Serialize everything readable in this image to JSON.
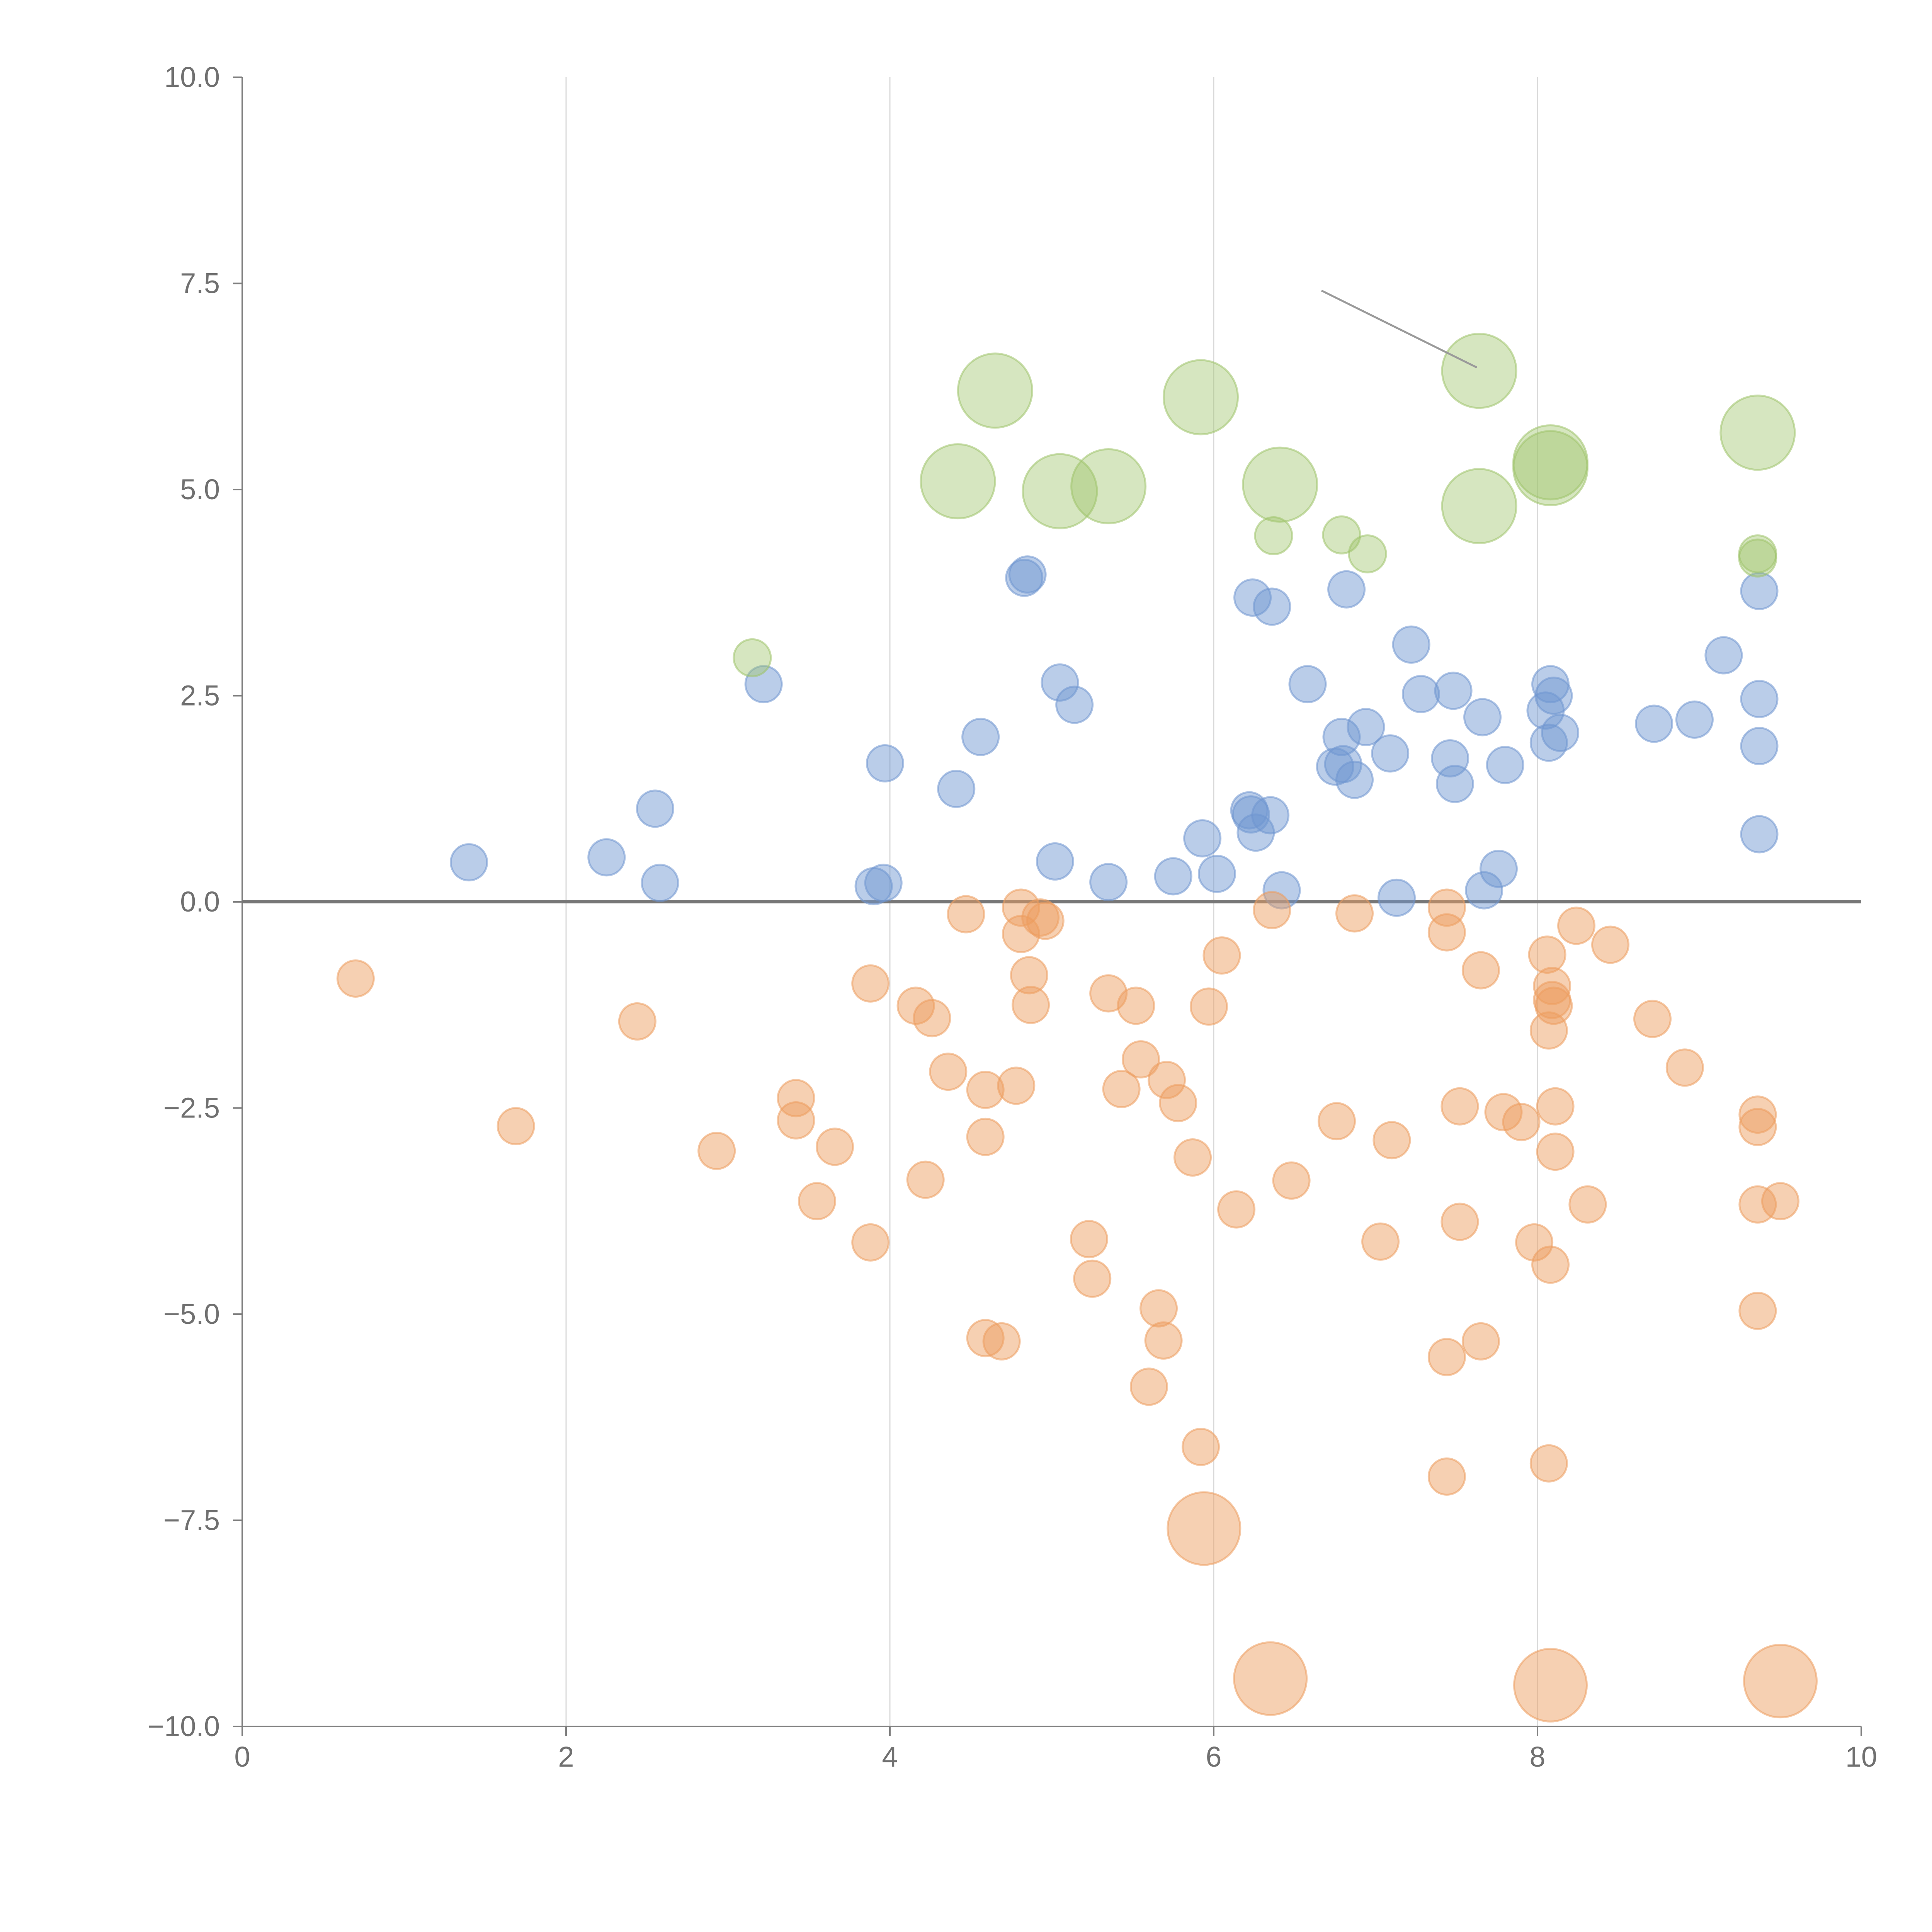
{
  "colors": {
    "positive": "#6f96d0",
    "negative": "#ec9c5f",
    "large": "#9ec36a",
    "axis": "#7f7f7f",
    "grid": "#d9d9d9",
    "tick": "#707070",
    "zero": "#777777"
  },
  "chart_data": {
    "type": "scatter",
    "title": "",
    "xlabel": "",
    "ylabel": "",
    "xlim": [
      0,
      10
    ],
    "ylim": [
      -10,
      10
    ],
    "grid": "vertical",
    "x_ticks": [
      "0",
      "2",
      "4",
      "6",
      "8",
      "10"
    ],
    "y_ticks": [
      "10.0",
      "7.5",
      "5.0",
      "2.5",
      "0.0",
      "−2.5",
      "−5.0",
      "−7.5",
      "−10.0"
    ],
    "series": [
      {
        "values": [
          [
            1.4,
            0.48
          ],
          [
            2.25,
            0.54
          ],
          [
            2.55,
            1.13
          ],
          [
            2.58,
            0.23
          ],
          [
            3.22,
            2.64
          ],
          [
            3.9,
            0.19
          ],
          [
            3.96,
            0.23
          ],
          [
            3.97,
            1.68
          ],
          [
            4.41,
            1.37
          ],
          [
            4.56,
            2.0
          ],
          [
            4.83,
            3.93
          ],
          [
            4.85,
            3.97
          ],
          [
            5.02,
            0.49
          ],
          [
            5.05,
            2.66
          ],
          [
            5.14,
            2.39
          ],
          [
            5.35,
            0.24
          ],
          [
            5.75,
            0.31
          ],
          [
            5.93,
            0.77
          ],
          [
            6.02,
            0.34
          ],
          [
            6.22,
            1.11
          ],
          [
            6.23,
            1.06
          ],
          [
            6.24,
            3.69
          ],
          [
            6.26,
            0.84
          ],
          [
            6.35,
            1.05
          ],
          [
            6.36,
            3.58
          ],
          [
            6.42,
            0.14
          ],
          [
            6.58,
            2.64
          ],
          [
            6.75,
            1.64
          ],
          [
            6.79,
            2.0
          ],
          [
            6.8,
            1.67
          ],
          [
            6.82,
            3.79
          ],
          [
            6.87,
            1.48
          ],
          [
            6.94,
            2.12
          ],
          [
            7.09,
            1.8
          ],
          [
            7.13,
            0.05
          ],
          [
            7.22,
            3.12
          ],
          [
            7.28,
            2.52
          ],
          [
            7.46,
            1.74
          ],
          [
            7.48,
            2.56
          ],
          [
            7.49,
            1.43
          ],
          [
            7.66,
            2.24
          ],
          [
            7.67,
            0.14
          ],
          [
            7.76,
            0.4
          ],
          [
            7.8,
            1.66
          ],
          [
            8.05,
            2.32
          ],
          [
            8.07,
            1.93
          ],
          [
            8.08,
            2.64
          ],
          [
            8.1,
            2.5
          ],
          [
            8.14,
            2.05
          ],
          [
            8.72,
            2.16
          ],
          [
            8.97,
            2.21
          ],
          [
            9.15,
            2.99
          ],
          [
            9.37,
            2.46
          ],
          [
            9.37,
            1.89
          ],
          [
            9.37,
            0.82
          ],
          [
            9.37,
            3.77
          ]
        ]
      },
      {
        "values": [
          [
            0.7,
            -0.93
          ],
          [
            1.69,
            -2.72
          ],
          [
            2.44,
            -1.45
          ],
          [
            2.93,
            -3.02
          ],
          [
            3.42,
            -2.38
          ],
          [
            3.42,
            -2.65
          ],
          [
            3.55,
            -3.63
          ],
          [
            3.66,
            -2.97
          ],
          [
            3.88,
            -0.99
          ],
          [
            3.88,
            -4.13
          ],
          [
            4.16,
            -1.26
          ],
          [
            4.22,
            -3.37
          ],
          [
            4.26,
            -1.41
          ],
          [
            4.36,
            -2.06
          ],
          [
            4.47,
            -0.15
          ],
          [
            4.59,
            -2.28
          ],
          [
            4.59,
            -2.85
          ],
          [
            4.59,
            -5.29
          ],
          [
            4.69,
            -5.33
          ],
          [
            4.78,
            -2.23
          ],
          [
            4.81,
            -0.07
          ],
          [
            4.81,
            -0.39
          ],
          [
            4.86,
            -0.89
          ],
          [
            4.87,
            -1.25
          ],
          [
            4.93,
            -0.19
          ],
          [
            4.96,
            -0.23
          ],
          [
            5.23,
            -4.09
          ],
          [
            5.25,
            -4.57
          ],
          [
            5.35,
            -1.11
          ],
          [
            5.43,
            -2.27
          ],
          [
            5.52,
            -1.26
          ],
          [
            5.55,
            -1.91
          ],
          [
            5.6,
            -5.88
          ],
          [
            5.66,
            -4.93
          ],
          [
            5.69,
            -5.32
          ],
          [
            5.71,
            -2.16
          ],
          [
            5.78,
            -2.44
          ],
          [
            5.87,
            -3.1
          ],
          [
            5.92,
            -6.61
          ],
          [
            5.94,
            -7.6
          ],
          [
            5.97,
            -1.27
          ],
          [
            6.05,
            -0.65
          ],
          [
            6.14,
            -3.73
          ],
          [
            6.35,
            -9.42
          ],
          [
            6.36,
            -0.1
          ],
          [
            6.48,
            -3.38
          ],
          [
            6.76,
            -2.66
          ],
          [
            6.87,
            -0.14
          ],
          [
            7.03,
            -4.12
          ],
          [
            7.1,
            -2.89
          ],
          [
            7.44,
            -0.07
          ],
          [
            7.44,
            -0.37
          ],
          [
            7.44,
            -5.52
          ],
          [
            7.44,
            -6.97
          ],
          [
            7.52,
            -2.48
          ],
          [
            7.52,
            -3.88
          ],
          [
            7.65,
            -0.83
          ],
          [
            7.65,
            -5.33
          ],
          [
            7.79,
            -2.55
          ],
          [
            7.9,
            -2.67
          ],
          [
            7.98,
            -4.13
          ],
          [
            8.06,
            -0.64
          ],
          [
            8.07,
            -1.56
          ],
          [
            8.07,
            -6.81
          ],
          [
            8.08,
            -4.4
          ],
          [
            8.08,
            -9.5
          ],
          [
            8.09,
            -1.02
          ],
          [
            8.09,
            -1.19
          ],
          [
            8.1,
            -1.26
          ],
          [
            8.11,
            -2.48
          ],
          [
            8.11,
            -3.03
          ],
          [
            8.24,
            -0.29
          ],
          [
            8.31,
            -3.67
          ],
          [
            8.45,
            -0.52
          ],
          [
            8.71,
            -1.42
          ],
          [
            8.91,
            -2.01
          ],
          [
            9.36,
            -2.58
          ],
          [
            9.36,
            -2.73
          ],
          [
            9.36,
            -3.67
          ],
          [
            9.36,
            -4.96
          ],
          [
            9.5,
            -3.63
          ],
          [
            9.5,
            -9.45
          ]
        ]
      },
      {
        "values": [
          [
            3.15,
            2.96
          ],
          [
            4.42,
            5.1
          ],
          [
            4.65,
            6.2
          ],
          [
            5.05,
            4.98
          ],
          [
            5.35,
            5.04
          ],
          [
            5.92,
            6.12
          ],
          [
            6.37,
            4.44
          ],
          [
            6.41,
            5.06
          ],
          [
            6.79,
            4.45
          ],
          [
            6.95,
            4.22
          ],
          [
            7.64,
            6.44
          ],
          [
            7.64,
            4.8
          ],
          [
            8.08,
            5.33
          ],
          [
            8.08,
            5.26
          ],
          [
            9.36,
            5.69
          ],
          [
            9.36,
            4.22
          ],
          [
            9.36,
            4.17
          ]
        ]
      }
    ],
    "legend": "none"
  }
}
